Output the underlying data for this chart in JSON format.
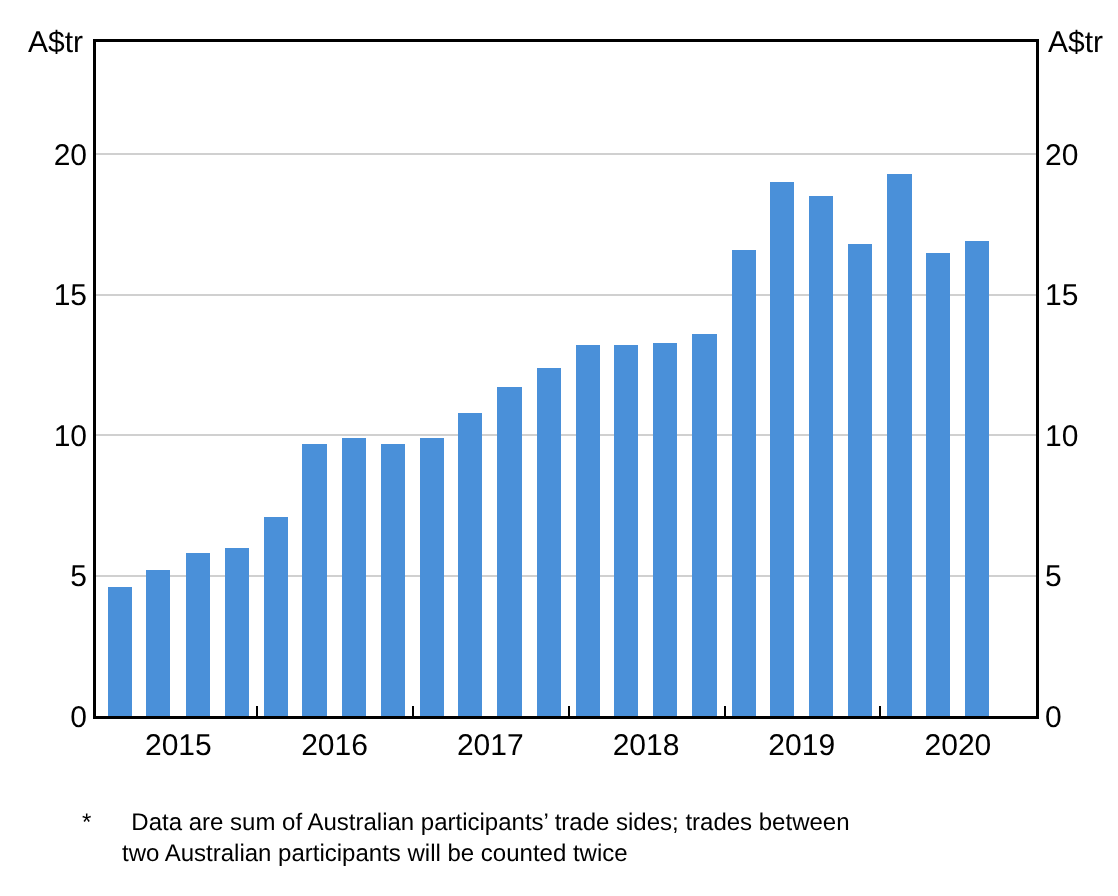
{
  "chart_data": {
    "type": "bar",
    "ylabel": "A$tr",
    "y2label": "A$tr",
    "x": [
      "2015-02-15",
      "2015-05-15",
      "2015-08-15",
      "2015-11-15",
      "2016-02-15",
      "2016-05-15",
      "2016-08-15",
      "2016-11-15",
      "2017-02-15",
      "2017-05-15",
      "2017-08-15",
      "2017-11-15",
      "2018-02-15",
      "2018-05-15",
      "2018-08-15",
      "2018-11-15",
      "2019-02-15",
      "2019-05-15",
      "2019-08-15",
      "2019-11-15",
      "2020-02-15",
      "2020-05-15",
      "2020-08-15"
    ],
    "series": [
      {
        "color": "#4a90d9",
        "values": [
          4.6,
          5.2,
          5.8,
          6.0,
          7.1,
          9.7,
          9.9,
          9.7,
          9.9,
          10.8,
          11.7,
          12.4,
          13.2,
          13.2,
          13.3,
          13.6,
          16.6,
          19.0,
          18.5,
          16.8,
          19.3,
          16.5,
          16.9
        ]
      }
    ],
    "xlim": [
      "2014-12-20",
      "2020-12-31"
    ],
    "xticks": [
      {
        "value": "2015-07-01",
        "label": "2015"
      },
      {
        "value": "2016-01-01",
        "label": null
      },
      {
        "value": "2016-07-01",
        "label": "2016"
      },
      {
        "value": "2017-01-01",
        "label": null
      },
      {
        "value": "2017-07-01",
        "label": "2017"
      },
      {
        "value": "2018-01-01",
        "label": null
      },
      {
        "value": "2018-07-01",
        "label": "2018"
      },
      {
        "value": "2019-01-01",
        "label": null
      },
      {
        "value": "2019-07-01",
        "label": "2019"
      },
      {
        "value": "2020-01-01",
        "label": null
      },
      {
        "value": "2020-07-01",
        "label": "2020"
      }
    ],
    "ylim": [
      0,
      24
    ],
    "yticks": [
      0,
      5,
      10,
      15,
      20
    ],
    "y2lim": [
      0,
      24
    ],
    "y2ticks": [
      0,
      5,
      10,
      15,
      20
    ],
    "grid": "y",
    "annotations": [
      "*\tData are sum of Australian participants’ trade sides; trades between\n\ttwo Australian participants will be counted twice"
    ]
  }
}
